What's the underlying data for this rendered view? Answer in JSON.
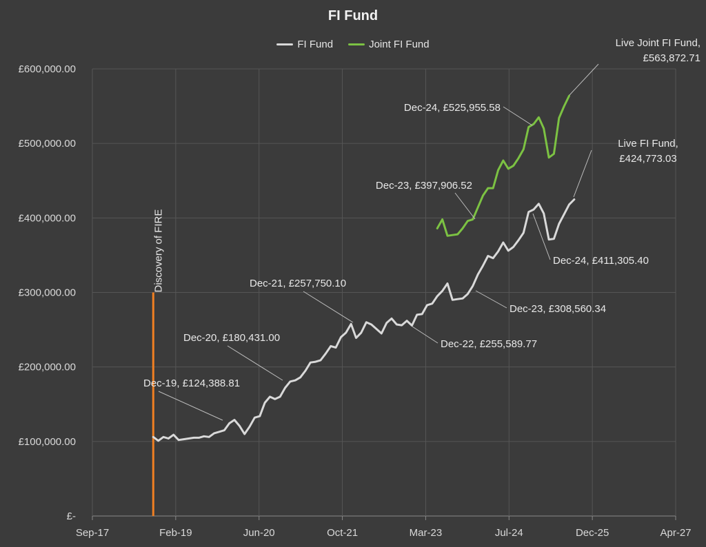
{
  "chart_data": {
    "type": "line",
    "title": "FI Fund",
    "xlabel": "",
    "ylabel": "",
    "x_tick_labels": [
      "Sep-17",
      "Feb-19",
      "Jun-20",
      "Oct-21",
      "Mar-23",
      "Jul-24",
      "Dec-25",
      "Apr-27"
    ],
    "y_tick_labels": [
      "£-",
      "£100,000.00",
      "£200,000.00",
      "£300,000.00",
      "£400,000.00",
      "£500,000.00",
      "£600,000.00"
    ],
    "ylim": [
      0,
      600000
    ],
    "xlim": [
      "2017-09",
      "2027-04"
    ],
    "grid": true,
    "legend_position": "top",
    "series": [
      {
        "name": "FI Fund",
        "color": "#d9d9d9",
        "points": [
          [
            "2018-09",
            106000
          ],
          [
            "2018-10",
            101000
          ],
          [
            "2018-11",
            106000
          ],
          [
            "2018-12",
            104000
          ],
          [
            "2019-01",
            109000
          ],
          [
            "2019-02",
            102000
          ],
          [
            "2019-03",
            103000
          ],
          [
            "2019-04",
            104000
          ],
          [
            "2019-05",
            105000
          ],
          [
            "2019-06",
            105000
          ],
          [
            "2019-07",
            107000
          ],
          [
            "2019-08",
            106000
          ],
          [
            "2019-09",
            111000
          ],
          [
            "2019-10",
            113000
          ],
          [
            "2019-11",
            115000
          ],
          [
            "2019-12",
            124388.81
          ],
          [
            "2020-01",
            129000
          ],
          [
            "2020-02",
            121000
          ],
          [
            "2020-03",
            110000
          ],
          [
            "2020-04",
            120000
          ],
          [
            "2020-05",
            132000
          ],
          [
            "2020-06",
            134000
          ],
          [
            "2020-07",
            152000
          ],
          [
            "2020-08",
            160000
          ],
          [
            "2020-09",
            157000
          ],
          [
            "2020-10",
            160000
          ],
          [
            "2020-11",
            172000
          ],
          [
            "2020-12",
            180431.0
          ],
          [
            "2021-01",
            182000
          ],
          [
            "2021-02",
            186000
          ],
          [
            "2021-03",
            195000
          ],
          [
            "2021-04",
            206000
          ],
          [
            "2021-05",
            207000
          ],
          [
            "2021-06",
            209000
          ],
          [
            "2021-07",
            218000
          ],
          [
            "2021-08",
            228000
          ],
          [
            "2021-09",
            226000
          ],
          [
            "2021-10",
            240000
          ],
          [
            "2021-11",
            246000
          ],
          [
            "2021-12",
            257750.1
          ],
          [
            "2022-01",
            239000
          ],
          [
            "2022-02",
            246000
          ],
          [
            "2022-03",
            260000
          ],
          [
            "2022-04",
            257000
          ],
          [
            "2022-05",
            251000
          ],
          [
            "2022-06",
            245000
          ],
          [
            "2022-07",
            259000
          ],
          [
            "2022-08",
            265000
          ],
          [
            "2022-09",
            257000
          ],
          [
            "2022-10",
            256000
          ],
          [
            "2022-11",
            262000
          ],
          [
            "2022-12",
            255589.77
          ],
          [
            "2023-01",
            270000
          ],
          [
            "2023-02",
            271000
          ],
          [
            "2023-03",
            283000
          ],
          [
            "2023-04",
            285000
          ],
          [
            "2023-05",
            295000
          ],
          [
            "2023-06",
            302000
          ],
          [
            "2023-07",
            312000
          ],
          [
            "2023-08",
            290000
          ],
          [
            "2023-09",
            291000
          ],
          [
            "2023-10",
            292000
          ],
          [
            "2023-11",
            298000
          ],
          [
            "2023-12",
            308560.34
          ],
          [
            "2024-01",
            324000
          ],
          [
            "2024-02",
            336000
          ],
          [
            "2024-03",
            349000
          ],
          [
            "2024-04",
            346000
          ],
          [
            "2024-05",
            355000
          ],
          [
            "2024-06",
            367000
          ],
          [
            "2024-07",
            356000
          ],
          [
            "2024-08",
            361000
          ],
          [
            "2024-09",
            370000
          ],
          [
            "2024-10",
            380000
          ],
          [
            "2024-11",
            408000
          ],
          [
            "2024-12",
            411305.4
          ],
          [
            "2025-01",
            419000
          ],
          [
            "2025-02",
            406000
          ],
          [
            "2025-03",
            371000
          ],
          [
            "2025-04",
            372000
          ],
          [
            "2025-05",
            392000
          ],
          [
            "2025-06",
            405000
          ],
          [
            "2025-07",
            418000
          ],
          [
            "2025-08",
            424773.03
          ]
        ]
      },
      {
        "name": "Joint FI Fund",
        "color": "#7cc243",
        "points": [
          [
            "2023-05",
            386000
          ],
          [
            "2023-06",
            398000
          ],
          [
            "2023-07",
            376000
          ],
          [
            "2023-08",
            377000
          ],
          [
            "2023-09",
            378000
          ],
          [
            "2023-10",
            386000
          ],
          [
            "2023-11",
            396000
          ],
          [
            "2023-12",
            397906.52
          ],
          [
            "2024-01",
            414000
          ],
          [
            "2024-02",
            430000
          ],
          [
            "2024-03",
            440000
          ],
          [
            "2024-04",
            440000
          ],
          [
            "2024-05",
            464000
          ],
          [
            "2024-06",
            477000
          ],
          [
            "2024-07",
            466000
          ],
          [
            "2024-08",
            470000
          ],
          [
            "2024-09",
            480000
          ],
          [
            "2024-10",
            492000
          ],
          [
            "2024-11",
            522000
          ],
          [
            "2024-12",
            525955.58
          ],
          [
            "2025-01",
            535000
          ],
          [
            "2025-02",
            520000
          ],
          [
            "2025-03",
            481000
          ],
          [
            "2025-04",
            486000
          ],
          [
            "2025-05",
            534000
          ],
          [
            "2025-06",
            550000
          ],
          [
            "2025-07",
            563872.71
          ]
        ]
      }
    ],
    "marker_line": {
      "label": "Discovery of FIRE",
      "x": "2018-09",
      "y_from": 0,
      "y_to": 300000,
      "color": "#f07f22"
    },
    "annotations": [
      {
        "id": "fi-dec19",
        "series": "FI Fund",
        "x": "2019-12",
        "lines": [
          "Dec-19,  £124,388.81"
        ],
        "anchor": "start"
      },
      {
        "id": "fi-dec20",
        "series": "FI Fund",
        "x": "2020-12",
        "lines": [
          "Dec-20,  £180,431.00"
        ],
        "anchor": "start"
      },
      {
        "id": "fi-dec21",
        "series": "FI Fund",
        "x": "2021-12",
        "lines": [
          "Dec-21,  £257,750.10"
        ],
        "anchor": "start"
      },
      {
        "id": "fi-dec22",
        "series": "FI Fund",
        "x": "2022-12",
        "lines": [
          "Dec-22,  £255,589.77"
        ],
        "anchor": "start"
      },
      {
        "id": "fi-dec23",
        "series": "FI Fund",
        "x": "2023-12",
        "lines": [
          "Dec-23,  £308,560.34"
        ],
        "anchor": "start"
      },
      {
        "id": "fi-dec24",
        "series": "FI Fund",
        "x": "2024-12",
        "lines": [
          "Dec-24,  £411,305.40"
        ],
        "anchor": "start"
      },
      {
        "id": "fi-live",
        "series": "FI Fund",
        "x": "2025-08",
        "lines": [
          "Live FI Fund,",
          "£424,773.03"
        ],
        "anchor": "middle"
      },
      {
        "id": "joint-dec23",
        "series": "Joint FI Fund",
        "x": "2023-12",
        "lines": [
          "Dec-23,  £397,906.52"
        ],
        "anchor": "end"
      },
      {
        "id": "joint-dec24",
        "series": "Joint FI Fund",
        "x": "2024-12",
        "lines": [
          "Dec-24,  £525,955.58"
        ],
        "anchor": "end"
      },
      {
        "id": "joint-live",
        "series": "Joint FI Fund",
        "x": "2025-07",
        "lines": [
          "Live Joint FI Fund,",
          "£563,872.71"
        ],
        "anchor": "end"
      }
    ]
  }
}
